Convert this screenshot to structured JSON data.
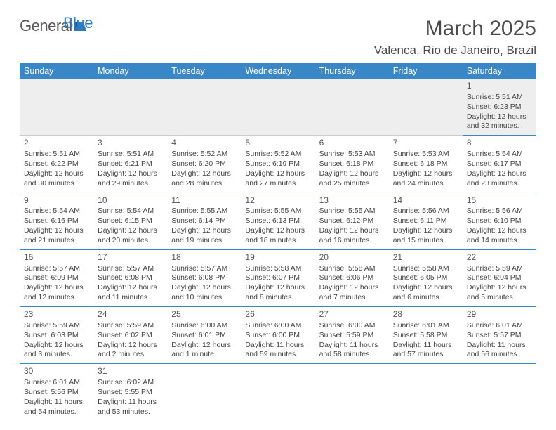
{
  "logo": {
    "text1": "General",
    "text2": "Blue",
    "shape_color": "#2e7cc0"
  },
  "title": "March 2025",
  "location": "Valenca, Rio de Janeiro, Brazil",
  "header_bg": "#3a87c7",
  "header_fg": "#ffffff",
  "divider_color": "#3a87c7",
  "day_headers": [
    "Sunday",
    "Monday",
    "Tuesday",
    "Wednesday",
    "Thursday",
    "Friday",
    "Saturday"
  ],
  "weeks": [
    [
      null,
      null,
      null,
      null,
      null,
      null,
      {
        "n": "1",
        "sr": "5:51 AM",
        "ss": "6:23 PM",
        "dl": "12 hours and 32 minutes."
      }
    ],
    [
      {
        "n": "2",
        "sr": "5:51 AM",
        "ss": "6:22 PM",
        "dl": "12 hours and 30 minutes."
      },
      {
        "n": "3",
        "sr": "5:51 AM",
        "ss": "6:21 PM",
        "dl": "12 hours and 29 minutes."
      },
      {
        "n": "4",
        "sr": "5:52 AM",
        "ss": "6:20 PM",
        "dl": "12 hours and 28 minutes."
      },
      {
        "n": "5",
        "sr": "5:52 AM",
        "ss": "6:19 PM",
        "dl": "12 hours and 27 minutes."
      },
      {
        "n": "6",
        "sr": "5:53 AM",
        "ss": "6:18 PM",
        "dl": "12 hours and 25 minutes."
      },
      {
        "n": "7",
        "sr": "5:53 AM",
        "ss": "6:18 PM",
        "dl": "12 hours and 24 minutes."
      },
      {
        "n": "8",
        "sr": "5:54 AM",
        "ss": "6:17 PM",
        "dl": "12 hours and 23 minutes."
      }
    ],
    [
      {
        "n": "9",
        "sr": "5:54 AM",
        "ss": "6:16 PM",
        "dl": "12 hours and 21 minutes."
      },
      {
        "n": "10",
        "sr": "5:54 AM",
        "ss": "6:15 PM",
        "dl": "12 hours and 20 minutes."
      },
      {
        "n": "11",
        "sr": "5:55 AM",
        "ss": "6:14 PM",
        "dl": "12 hours and 19 minutes."
      },
      {
        "n": "12",
        "sr": "5:55 AM",
        "ss": "6:13 PM",
        "dl": "12 hours and 18 minutes."
      },
      {
        "n": "13",
        "sr": "5:55 AM",
        "ss": "6:12 PM",
        "dl": "12 hours and 16 minutes."
      },
      {
        "n": "14",
        "sr": "5:56 AM",
        "ss": "6:11 PM",
        "dl": "12 hours and 15 minutes."
      },
      {
        "n": "15",
        "sr": "5:56 AM",
        "ss": "6:10 PM",
        "dl": "12 hours and 14 minutes."
      }
    ],
    [
      {
        "n": "16",
        "sr": "5:57 AM",
        "ss": "6:09 PM",
        "dl": "12 hours and 12 minutes."
      },
      {
        "n": "17",
        "sr": "5:57 AM",
        "ss": "6:08 PM",
        "dl": "12 hours and 11 minutes."
      },
      {
        "n": "18",
        "sr": "5:57 AM",
        "ss": "6:08 PM",
        "dl": "12 hours and 10 minutes."
      },
      {
        "n": "19",
        "sr": "5:58 AM",
        "ss": "6:07 PM",
        "dl": "12 hours and 8 minutes."
      },
      {
        "n": "20",
        "sr": "5:58 AM",
        "ss": "6:06 PM",
        "dl": "12 hours and 7 minutes."
      },
      {
        "n": "21",
        "sr": "5:58 AM",
        "ss": "6:05 PM",
        "dl": "12 hours and 6 minutes."
      },
      {
        "n": "22",
        "sr": "5:59 AM",
        "ss": "6:04 PM",
        "dl": "12 hours and 5 minutes."
      }
    ],
    [
      {
        "n": "23",
        "sr": "5:59 AM",
        "ss": "6:03 PM",
        "dl": "12 hours and 3 minutes."
      },
      {
        "n": "24",
        "sr": "5:59 AM",
        "ss": "6:02 PM",
        "dl": "12 hours and 2 minutes."
      },
      {
        "n": "25",
        "sr": "6:00 AM",
        "ss": "6:01 PM",
        "dl": "12 hours and 1 minute."
      },
      {
        "n": "26",
        "sr": "6:00 AM",
        "ss": "6:00 PM",
        "dl": "11 hours and 59 minutes."
      },
      {
        "n": "27",
        "sr": "6:00 AM",
        "ss": "5:59 PM",
        "dl": "11 hours and 58 minutes."
      },
      {
        "n": "28",
        "sr": "6:01 AM",
        "ss": "5:58 PM",
        "dl": "11 hours and 57 minutes."
      },
      {
        "n": "29",
        "sr": "6:01 AM",
        "ss": "5:57 PM",
        "dl": "11 hours and 56 minutes."
      }
    ],
    [
      {
        "n": "30",
        "sr": "6:01 AM",
        "ss": "5:56 PM",
        "dl": "11 hours and 54 minutes."
      },
      {
        "n": "31",
        "sr": "6:02 AM",
        "ss": "5:55 PM",
        "dl": "11 hours and 53 minutes."
      },
      null,
      null,
      null,
      null,
      null
    ]
  ],
  "labels": {
    "sunrise": "Sunrise: ",
    "sunset": "Sunset: ",
    "daylight": "Daylight: "
  }
}
